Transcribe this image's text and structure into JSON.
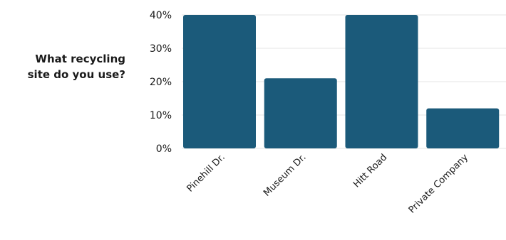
{
  "question_lines": [
    "What recycling",
    "site do you use?"
  ],
  "chart_data": {
    "type": "bar",
    "categories": [
      "Pinehill Dr.",
      "Museum Dr.",
      "Hitt Road",
      "Private Company"
    ],
    "values": [
      40,
      21,
      40,
      12
    ],
    "ylim": [
      0,
      40
    ],
    "yticks": [
      "0%",
      "10%",
      "20%",
      "30%",
      "40%"
    ],
    "grid": true,
    "bar_color": "#1b5a7a",
    "grid_color": "#e6e6e6"
  }
}
